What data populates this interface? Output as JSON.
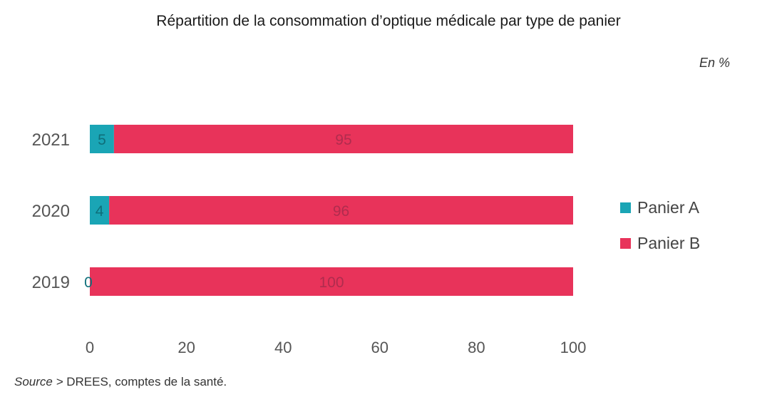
{
  "unit": "En %",
  "source_prefix": "Source >",
  "source_text": " DREES, comptes de la santé.",
  "chart_data": {
    "type": "bar",
    "orientation": "horizontal",
    "stacked": true,
    "title": "Répartition de la consommation d’optique médicale par type de panier",
    "xlabel": "",
    "ylabel": "",
    "xlim": [
      0,
      100
    ],
    "xticks": [
      "0",
      "20",
      "40",
      "60",
      "80",
      "100"
    ],
    "categories": [
      "2021",
      "2020",
      "2019"
    ],
    "series": [
      {
        "name": "Panier A",
        "color": "#1aa5b5",
        "values": [
          5,
          4,
          0
        ],
        "labels": [
          "5",
          "4",
          "0"
        ]
      },
      {
        "name": "Panier B",
        "color": "#e8335a",
        "values": [
          95,
          96,
          100
        ],
        "labels": [
          "95",
          "96",
          "100"
        ]
      }
    ],
    "grid": false,
    "legend_position": "right"
  }
}
